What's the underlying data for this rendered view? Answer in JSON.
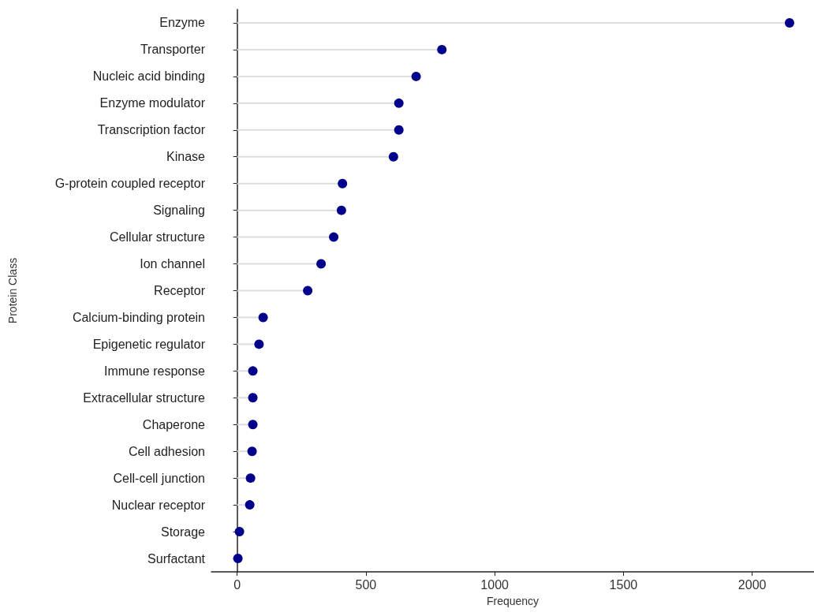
{
  "chart_data": {
    "type": "lollipop",
    "orientation": "horizontal",
    "xlabel": "Frequency",
    "ylabel": "Protein Class",
    "categories": [
      "Enzyme",
      "Transporter",
      "Nucleic acid binding",
      "Enzyme modulator",
      "Transcription factor",
      "Kinase",
      "G-protein coupled receptor",
      "Signaling",
      "Cellular structure",
      "Ion channel",
      "Receptor",
      "Calcium-binding protein",
      "Epigenetic regulator",
      "Immune response",
      "Extracellular structure",
      "Chaperone",
      "Cell adhesion",
      "Cell-cell junction",
      "Nuclear receptor",
      "Storage",
      "Surfactant"
    ],
    "values": [
      2145,
      795,
      695,
      628,
      628,
      607,
      409,
      405,
      375,
      326,
      274,
      101,
      85,
      61,
      61,
      61,
      58,
      52,
      49,
      9,
      3
    ],
    "color": "#00008b",
    "xlim": [
      -100,
      2240
    ],
    "xticks": [
      0,
      500,
      1000,
      1500,
      2000
    ],
    "grid": false,
    "marker": "circle"
  }
}
